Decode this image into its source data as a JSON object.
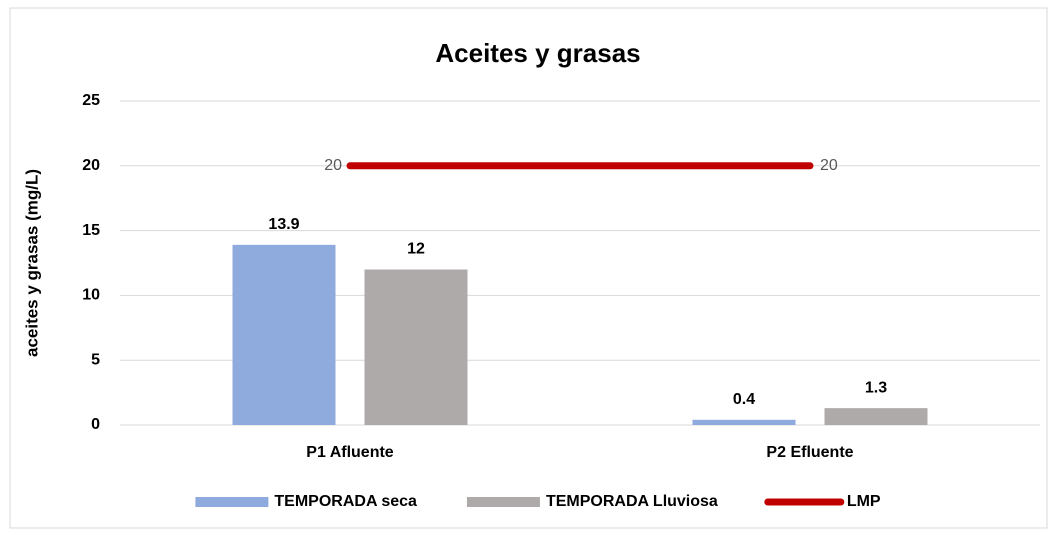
{
  "chart_data": {
    "type": "bar",
    "title": "Aceites y grasas",
    "y_label": "aceites y grasas (mg/L)",
    "categories": [
      "P1 Afluente",
      "P2 Efluente"
    ],
    "series": [
      {
        "name": "TEMPORADA seca",
        "color": "#8faadc",
        "values": [
          13.9,
          0.4
        ]
      },
      {
        "name": "TEMPORADA Lluviosa",
        "color": "#aeaaaa",
        "values": [
          12,
          1.3
        ]
      },
      {
        "name": "LMP",
        "color": "#c00000",
        "type": "line",
        "values": [
          20,
          20
        ]
      }
    ],
    "ylim": [
      0,
      25
    ],
    "yticks": [
      0,
      5,
      10,
      15,
      20,
      25
    ],
    "grid": true,
    "legend": "bottom"
  }
}
